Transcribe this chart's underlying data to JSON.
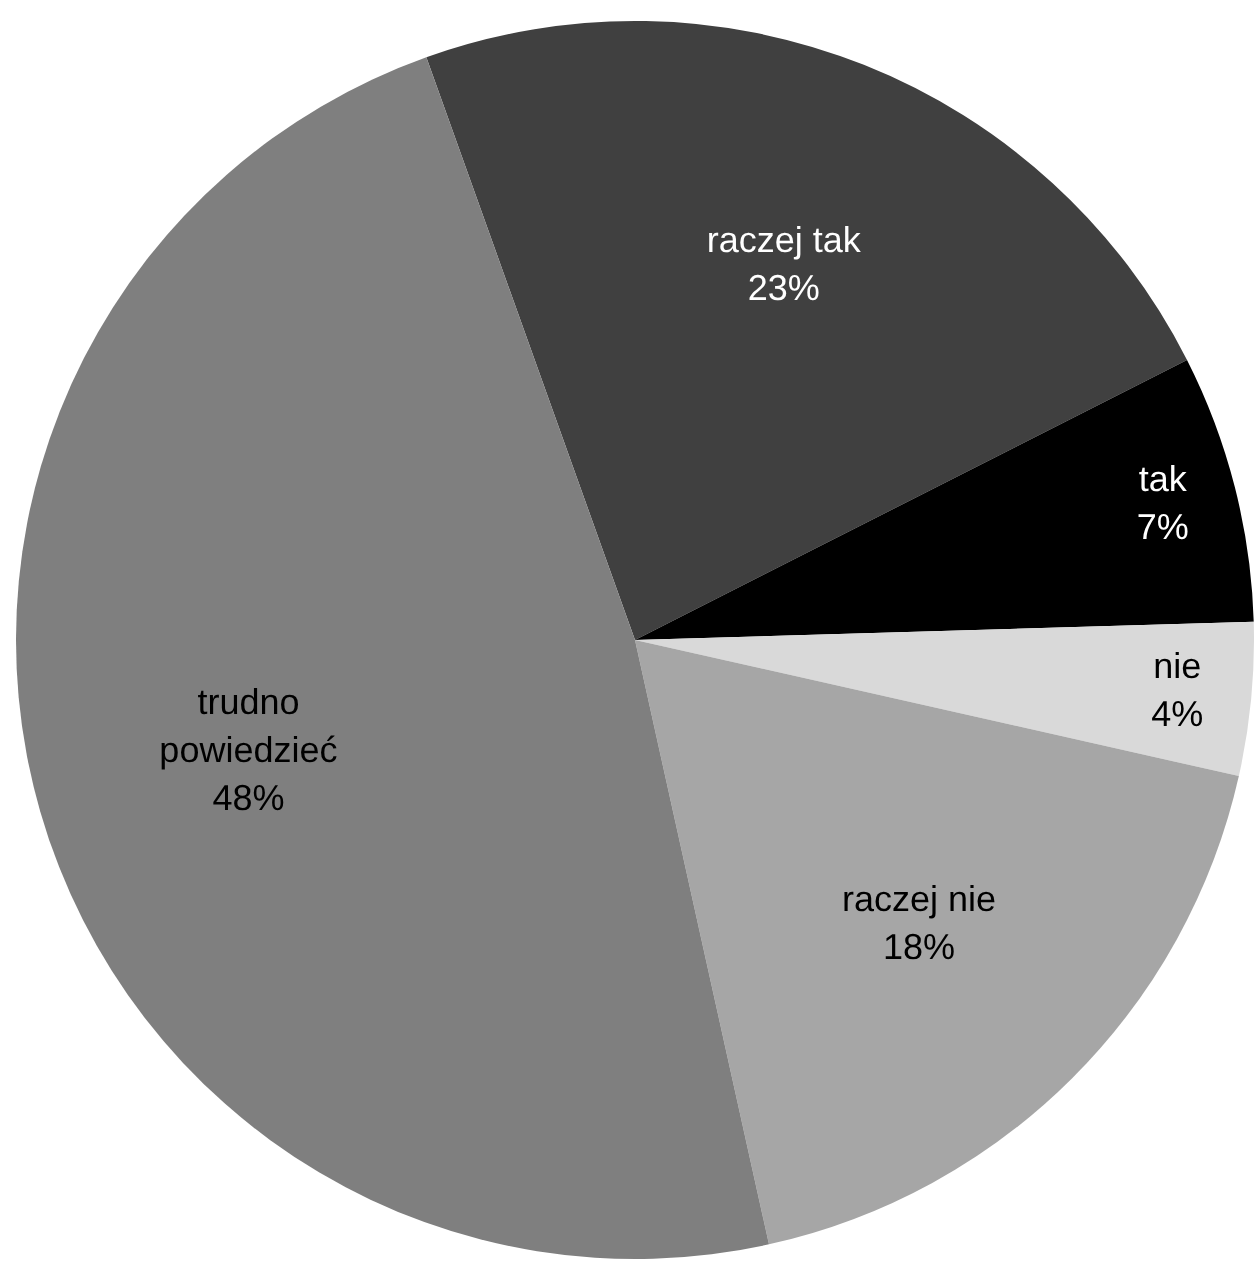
{
  "chart_data": {
    "type": "pie",
    "categories": [
      "raczej tak",
      "tak",
      "nie",
      "raczej nie",
      "trudno powiedzieć"
    ],
    "values": [
      23,
      7,
      4,
      18,
      48
    ],
    "colors": [
      "#404040",
      "#000000",
      "#d9d9d9",
      "#a6a6a6",
      "#7f7f7f"
    ],
    "value_labels": [
      "23%",
      "7%",
      "4%",
      "18%",
      "48%"
    ],
    "legend": false
  }
}
